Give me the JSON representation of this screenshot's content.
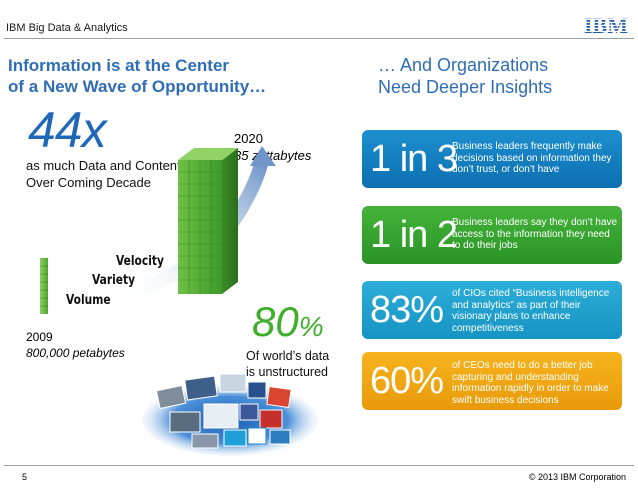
{
  "header": {
    "title": "IBM Big Data & Analytics",
    "logo_text": "IBM"
  },
  "left": {
    "title_line1": "Information is at the Center",
    "title_line2": "of a New Wave of Opportunity…",
    "big_stat": "44x",
    "big_stat_text_line1": "as much Data and Content",
    "big_stat_text_line2": "Over Coming Decade",
    "year_2020": "2020",
    "value_2020": "35 zettabytes",
    "year_2009": "2009",
    "value_2009": "800,000 petabytes",
    "labels": {
      "velocity": "Velocity",
      "variety": "Variety",
      "volume": "Volume"
    },
    "pct_number": "80",
    "pct_sign": "%",
    "pct_text_line1": "Of world’s data",
    "pct_text_line2": "is unstructured"
  },
  "right": {
    "title_line1": "… And Organizations",
    "title_line2": "Need Deeper Insights",
    "cards": [
      {
        "stat": "1 in 3",
        "text": "Business leaders frequently make decisions based on information they don’t trust, or don’t have",
        "color": "#1580c2"
      },
      {
        "stat": "1 in 2",
        "text": "Business leaders say they don’t have access to the information they need to do their jobs",
        "color": "#38a532"
      },
      {
        "stat": "83%",
        "text": "of CIOs cited “Business intelligence and analytics” as part of their visionary plans to enhance competitiveness",
        "color": "#20a0cf"
      },
      {
        "stat": "60%",
        "text": "of CEOs need to do a better job capturing and understanding information rapidly in order to make swift business decisions",
        "color": "#f0a814"
      }
    ]
  },
  "footer": {
    "page": "5",
    "copyright": "© 2013 IBM Corporation"
  }
}
